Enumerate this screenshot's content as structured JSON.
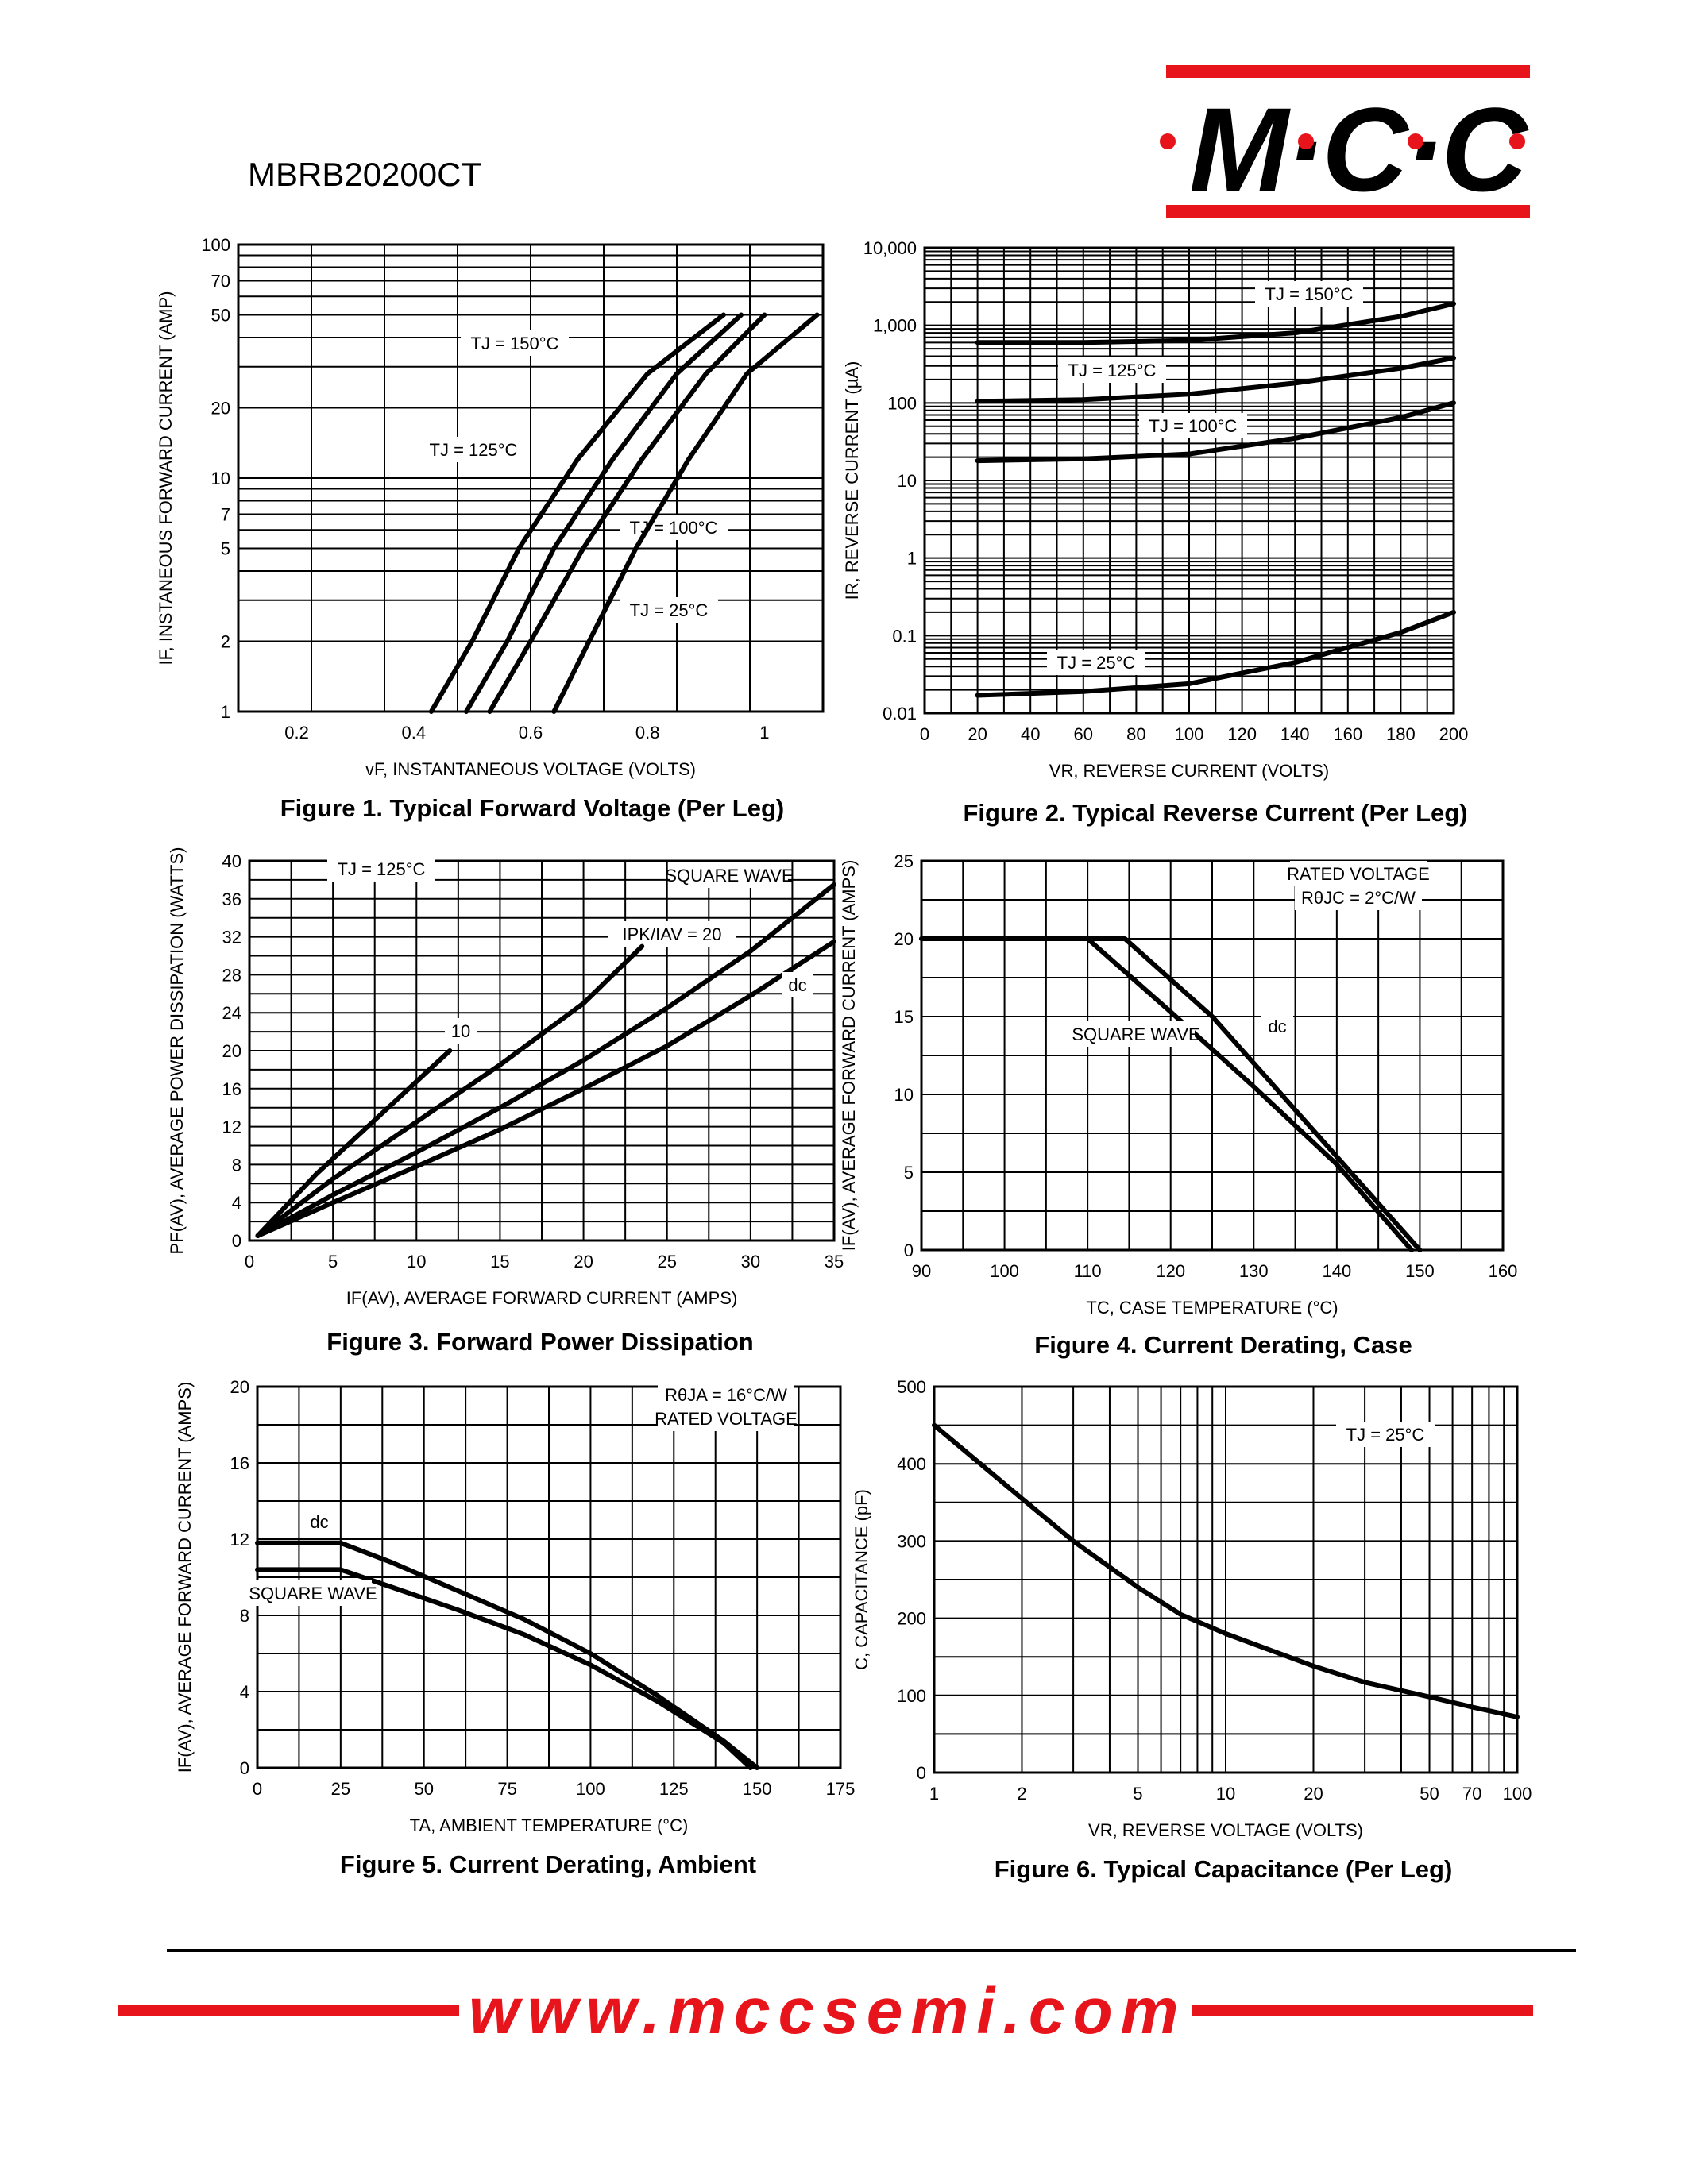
{
  "header": {
    "part_number": "MBRB20200CT",
    "logo": "M·C·C",
    "brand_red": "#e8141b"
  },
  "footer": {
    "url_prefix": "www.mccsemi",
    "url_suffix": ".com"
  },
  "captions": {
    "fig1": "Figure 1. Typical Forward Voltage (Per Leg)",
    "fig2": "Figure 2. Typical Reverse Current (Per Leg)",
    "fig3": "Figure 3. Forward Power Dissipation",
    "fig4": "Figure 4. Current Derating, Case",
    "fig5": "Figure 5. Current Derating, Ambient",
    "fig6": "Figure 6. Typical Capacitance (Per Leg)"
  },
  "chart_data": [
    {
      "id": "fig1",
      "type": "line",
      "title": "Figure 1. Typical Forward Voltage (Per Leg)",
      "xlabel": "vF, INSTANTANEOUS VOLTAGE (VOLTS)",
      "ylabel": "IF, INSTANEOUS FORWARD CURRENT (AMP)",
      "xscale": "linear",
      "yscale": "log",
      "xlim": [
        0.1,
        1.1
      ],
      "ylim": [
        1,
        100
      ],
      "xticks": [
        0.2,
        0.4,
        0.6,
        0.8,
        1
      ],
      "xtick_labels": [
        "0.2",
        "0.4",
        "0.6",
        "0.8",
        "1"
      ],
      "yticks": [
        1,
        2,
        5,
        7,
        10,
        20,
        50,
        70,
        100
      ],
      "ytick_labels": [
        "1",
        "2",
        "5",
        "7",
        "10",
        "20",
        "50",
        "70",
        "100"
      ],
      "grid": true,
      "series": [
        {
          "name": "TJ = 150°C",
          "x": [
            0.43,
            0.5,
            0.58,
            0.68,
            0.8,
            0.93
          ],
          "y": [
            1,
            2,
            5,
            12,
            28,
            50
          ]
        },
        {
          "name": "TJ = 125°C",
          "x": [
            0.49,
            0.56,
            0.64,
            0.74,
            0.85,
            0.96
          ],
          "y": [
            1,
            2,
            5,
            12,
            28,
            50
          ]
        },
        {
          "name": "TJ = 100°C",
          "x": [
            0.53,
            0.6,
            0.69,
            0.79,
            0.9,
            1.0
          ],
          "y": [
            1,
            2,
            5,
            12,
            28,
            50
          ]
        },
        {
          "name": "TJ = 25°C",
          "x": [
            0.64,
            0.7,
            0.78,
            0.87,
            0.97,
            1.09
          ],
          "y": [
            1,
            2,
            5,
            12,
            28,
            50
          ]
        }
      ]
    },
    {
      "id": "fig2",
      "type": "line",
      "title": "Figure 2. Typical Reverse Current (Per Leg)",
      "xlabel": "VR, REVERSE CURRENT (VOLTS)",
      "ylabel": "IR, REVERSE CURRENT (µA)",
      "xscale": "linear",
      "yscale": "log",
      "xlim": [
        0,
        200
      ],
      "ylim": [
        0.01,
        10000
      ],
      "xticks": [
        0,
        20,
        40,
        60,
        80,
        100,
        120,
        140,
        160,
        180,
        200
      ],
      "xtick_labels": [
        "0",
        "20",
        "40",
        "60",
        "80",
        "100",
        "120",
        "140",
        "160",
        "180",
        "200"
      ],
      "yticks": [
        0.01,
        0.1,
        1,
        10,
        100,
        1000,
        10000
      ],
      "ytick_labels": [
        "0.01",
        "0.1",
        "1",
        "10",
        "100",
        "1,000",
        "10,000"
      ],
      "grid": true,
      "series": [
        {
          "name": "TJ = 150°C",
          "x": [
            20,
            60,
            100,
            140,
            180,
            200
          ],
          "y": [
            600,
            600,
            640,
            800,
            1300,
            1900
          ]
        },
        {
          "name": "TJ = 125°C",
          "x": [
            20,
            60,
            100,
            140,
            180,
            200
          ],
          "y": [
            105,
            110,
            130,
            180,
            280,
            380
          ]
        },
        {
          "name": "TJ = 100°C",
          "x": [
            20,
            60,
            100,
            140,
            180,
            200
          ],
          "y": [
            18,
            19,
            22,
            35,
            65,
            100
          ]
        },
        {
          "name": "TJ = 25°C",
          "x": [
            20,
            60,
            100,
            140,
            180,
            200
          ],
          "y": [
            0.017,
            0.019,
            0.024,
            0.045,
            0.11,
            0.2
          ]
        }
      ]
    },
    {
      "id": "fig3",
      "type": "line",
      "title": "Figure 3. Forward Power Dissipation",
      "xlabel": "IF(AV), AVERAGE FORWARD CURRENT (AMPS)",
      "ylabel": "PF(AV), AVERAGE POWER DISSIPATION (WATTS)",
      "xscale": "linear",
      "yscale": "linear",
      "xlim": [
        0,
        35
      ],
      "ylim": [
        0,
        40
      ],
      "xticks": [
        0,
        5,
        10,
        15,
        20,
        25,
        30,
        35
      ],
      "xtick_labels": [
        "0",
        "5",
        "10",
        "15",
        "20",
        "25",
        "30",
        "35"
      ],
      "yticks": [
        0,
        4,
        8,
        12,
        16,
        20,
        24,
        28,
        32,
        36,
        40
      ],
      "ytick_labels": [
        "0",
        "4",
        "8",
        "12",
        "16",
        "20",
        "24",
        "28",
        "32",
        "36",
        "40"
      ],
      "grid": true,
      "annotation": "TJ = 125°C",
      "series": [
        {
          "name": "IPK/IAV = 20",
          "x": [
            0.5,
            4,
            8,
            12
          ],
          "y": [
            0.5,
            7,
            13.5,
            20
          ]
        },
        {
          "name": "10",
          "x": [
            0.5,
            5,
            10,
            15,
            20,
            23.5
          ],
          "y": [
            0.5,
            6.5,
            12.5,
            18.5,
            25,
            31
          ]
        },
        {
          "name": "SQUARE WAVE",
          "x": [
            0.5,
            5,
            10,
            15,
            20,
            25,
            30,
            35
          ],
          "y": [
            0.5,
            4.8,
            9.3,
            14,
            19,
            24.5,
            30.5,
            37.5
          ]
        },
        {
          "name": "dc",
          "x": [
            0.5,
            5,
            10,
            15,
            20,
            25,
            30,
            35
          ],
          "y": [
            0.5,
            4,
            7.8,
            11.7,
            16,
            20.5,
            25.8,
            31.5
          ]
        }
      ]
    },
    {
      "id": "fig4",
      "type": "line",
      "title": "Figure 4. Current Derating, Case",
      "xlabel": "TC, CASE TEMPERATURE (°C)",
      "ylabel": "IF(AV), AVERAGE FORWARD CURRENT (AMPS)",
      "xscale": "linear",
      "yscale": "linear",
      "xlim": [
        90,
        160
      ],
      "ylim": [
        0,
        25
      ],
      "xticks": [
        90,
        100,
        110,
        120,
        130,
        140,
        150,
        160
      ],
      "xtick_labels": [
        "90",
        "100",
        "110",
        "120",
        "130",
        "140",
        "150",
        "160"
      ],
      "yticks": [
        0,
        5,
        10,
        15,
        20,
        25
      ],
      "ytick_labels": [
        "0",
        "5",
        "10",
        "15",
        "20",
        "25"
      ],
      "grid": true,
      "annotation": [
        "RATED VOLTAGE",
        "RθJC = 2°C/W"
      ],
      "series": [
        {
          "name": "dc",
          "x": [
            90,
            114.5,
            125,
            130,
            140,
            150
          ],
          "y": [
            20,
            20,
            15,
            12,
            6,
            0
          ]
        },
        {
          "name": "SQUARE WAVE",
          "x": [
            90,
            110,
            120,
            130,
            140,
            149
          ],
          "y": [
            20,
            20,
            15.3,
            10.5,
            5.5,
            0
          ]
        }
      ]
    },
    {
      "id": "fig5",
      "type": "line",
      "title": "Figure 5. Current Derating, Ambient",
      "xlabel": "TA, AMBIENT TEMPERATURE (°C)",
      "ylabel": "IF(AV), AVERAGE FORWARD CURRENT (AMPS)",
      "xscale": "linear",
      "yscale": "linear",
      "xlim": [
        0,
        175
      ],
      "ylim": [
        0,
        20
      ],
      "xticks": [
        0,
        25,
        50,
        75,
        100,
        125,
        150,
        175
      ],
      "xtick_labels": [
        "0",
        "25",
        "50",
        "75",
        "100",
        "125",
        "150",
        "175"
      ],
      "yticks": [
        0,
        4,
        8,
        12,
        16,
        20
      ],
      "ytick_labels": [
        "0",
        "4",
        "8",
        "12",
        "16",
        "20"
      ],
      "grid": true,
      "annotation": [
        "RθJA = 16°C/W",
        "RATED VOLTAGE"
      ],
      "series": [
        {
          "name": "dc",
          "x": [
            0,
            25,
            40,
            60,
            80,
            100,
            120,
            140,
            150
          ],
          "y": [
            11.8,
            11.8,
            10.8,
            9.3,
            7.8,
            6.0,
            3.8,
            1.4,
            0
          ]
        },
        {
          "name": "SQUARE WAVE",
          "x": [
            0,
            25,
            40,
            60,
            80,
            100,
            120,
            140,
            148
          ],
          "y": [
            10.4,
            10.4,
            9.5,
            8.3,
            7.0,
            5.4,
            3.5,
            1.3,
            0
          ]
        }
      ]
    },
    {
      "id": "fig6",
      "type": "line",
      "title": "Figure 6. Typical Capacitance (Per Leg)",
      "xlabel": "VR, REVERSE VOLTAGE (VOLTS)",
      "ylabel": "C, CAPACITANCE (pF)",
      "xscale": "log",
      "yscale": "linear",
      "xlim": [
        1,
        100
      ],
      "ylim": [
        0,
        500
      ],
      "xticks": [
        1,
        2,
        5,
        10,
        20,
        50,
        70,
        100
      ],
      "xtick_labels": [
        "1",
        "2",
        "5",
        "10",
        "20",
        "50",
        "70",
        "100"
      ],
      "yticks": [
        0,
        100,
        200,
        300,
        400,
        500
      ],
      "ytick_labels": [
        "0",
        "100",
        "200",
        "300",
        "400",
        "500"
      ],
      "grid": true,
      "annotation": "TJ = 25°C",
      "series": [
        {
          "name": "TJ = 25°C",
          "x": [
            1,
            2,
            3,
            5,
            7,
            10,
            20,
            30,
            50,
            70,
            100
          ],
          "y": [
            450,
            355,
            300,
            240,
            205,
            180,
            138,
            117,
            98,
            85,
            72
          ]
        }
      ]
    }
  ]
}
